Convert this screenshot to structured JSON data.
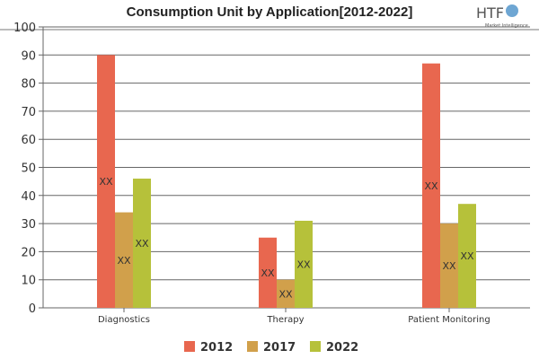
{
  "chart_data": {
    "type": "bar",
    "title": "Consumption Unit by  Application[2012-2022]",
    "categories": [
      "Diagnostics",
      "Therapy",
      "Patient Monitoring"
    ],
    "series": [
      {
        "name": "2012",
        "values": [
          90,
          25,
          87
        ],
        "color": "#e8674f"
      },
      {
        "name": "2017",
        "values": [
          34,
          10,
          30
        ],
        "color": "#d1a04b"
      },
      {
        "name": "2022",
        "values": [
          46,
          31,
          37
        ],
        "color": "#b6c13a"
      }
    ],
    "data_label": "XX",
    "ylim": [
      0,
      100
    ],
    "yticks": [
      0,
      10,
      20,
      30,
      40,
      50,
      60,
      70,
      80,
      90,
      100
    ],
    "grid": true,
    "legend": "bottom",
    "xlabel": "",
    "ylabel": ""
  },
  "logo": {
    "text": "HTF",
    "subtext": "Market Intelligence"
  }
}
